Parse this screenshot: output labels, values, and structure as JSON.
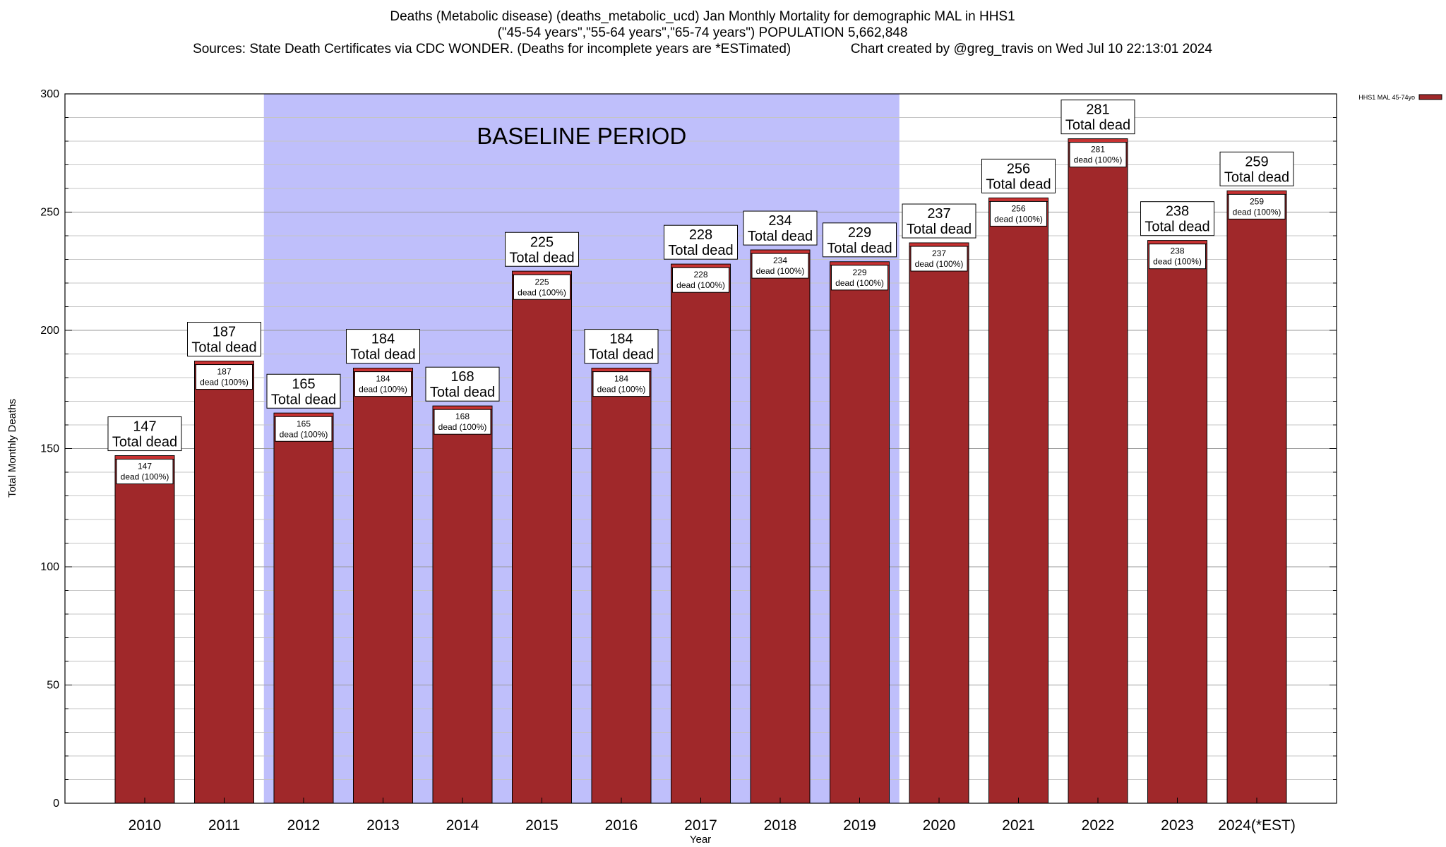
{
  "title_lines": [
    "Deaths (Metabolic disease) (deaths_metabolic_ucd) Jan Monthly Mortality for demographic MAL in HHS1",
    "(\"45-54 years\",\"55-64 years\",\"65-74 years\") POPULATION 5,662,848",
    "Sources: State Death Certificates via CDC WONDER. (Deaths for incomplete years are *ESTimated)                Chart created by @greg_travis on Wed Jul 10 22:13:01 2024"
  ],
  "chart_data": {
    "type": "bar",
    "ylabel": "Total Monthly Deaths",
    "xlabel": "Year",
    "ylim": [
      0,
      300
    ],
    "y_major_ticks": [
      0,
      50,
      100,
      150,
      200,
      250,
      300
    ],
    "grid": true,
    "legend": {
      "placement": "top-right",
      "entry": "HHS1 MAL 45-74yo"
    },
    "baseline_period": {
      "label": "BASELINE PERIOD",
      "from_category": "2012",
      "to_category": "2019",
      "color": "#bfbffb"
    },
    "bar_color": "#a0282a",
    "bar_top_color": "#c83232",
    "top_label_suffix": "Total dead",
    "inner_label_suffix": "dead (100%)",
    "categories": [
      "2010",
      "2011",
      "2012",
      "2013",
      "2014",
      "2015",
      "2016",
      "2017",
      "2018",
      "2019",
      "2020",
      "2021",
      "2022",
      "2023",
      "2024(*EST)"
    ],
    "values": [
      147,
      187,
      165,
      184,
      168,
      225,
      184,
      228,
      234,
      229,
      237,
      256,
      281,
      238,
      259
    ]
  }
}
